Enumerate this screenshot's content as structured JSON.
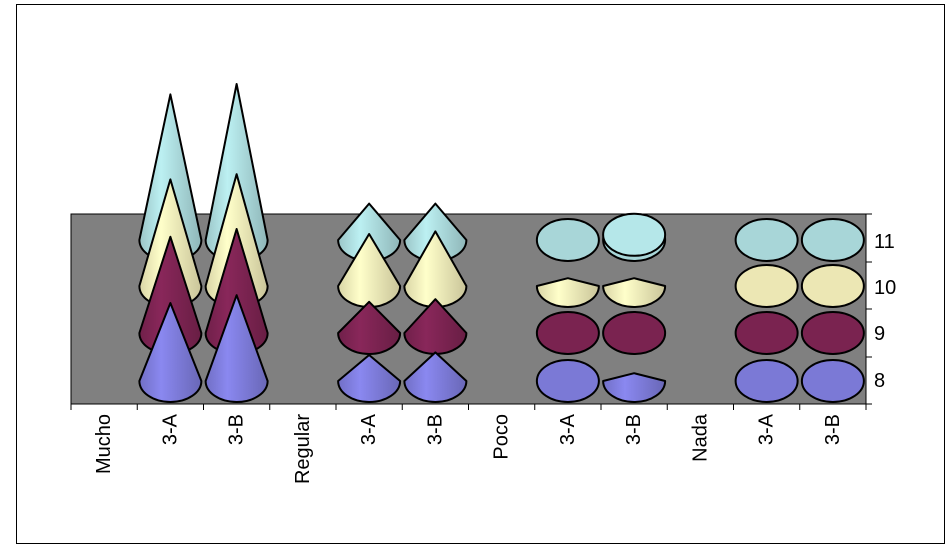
{
  "chart_data": {
    "type": "bar",
    "bar_shape": "cone",
    "projection": "3d",
    "categories": [
      "Mucho",
      "3-A",
      "3-B",
      "Regular",
      "3-A",
      "3-B",
      "Poco",
      "3-A",
      "3-B",
      "Nada",
      "3-A",
      "3-B"
    ],
    "series": [
      {
        "name": "8",
        "values": [
          0,
          3.0,
          3.3,
          0,
          1.0,
          1.1,
          0,
          0.03,
          0.3,
          0,
          0.03,
          0.03
        ]
      },
      {
        "name": "9",
        "values": [
          0,
          3.7,
          4.0,
          0,
          1.2,
          1.3,
          0,
          0.03,
          0.03,
          0,
          0.03,
          0.03
        ]
      },
      {
        "name": "10",
        "values": [
          0,
          4.1,
          4.3,
          0,
          2.0,
          2.1,
          0,
          0.3,
          0.3,
          0,
          0.03,
          0.03
        ]
      },
      {
        "name": "11",
        "values": [
          0,
          5.6,
          6.0,
          0,
          1.4,
          1.4,
          0,
          0.03,
          0.2,
          0,
          0.03,
          0.03
        ]
      }
    ],
    "colors": {
      "8": "#7b79d6",
      "9": "#7a2350",
      "10": "#ece7b4",
      "11": "#a8d6d8"
    },
    "series_axis_labels": [
      "11",
      "10",
      "9",
      "8"
    ],
    "title": "",
    "xlabel": "",
    "ylabel": "",
    "grid": false,
    "legend": "none"
  }
}
